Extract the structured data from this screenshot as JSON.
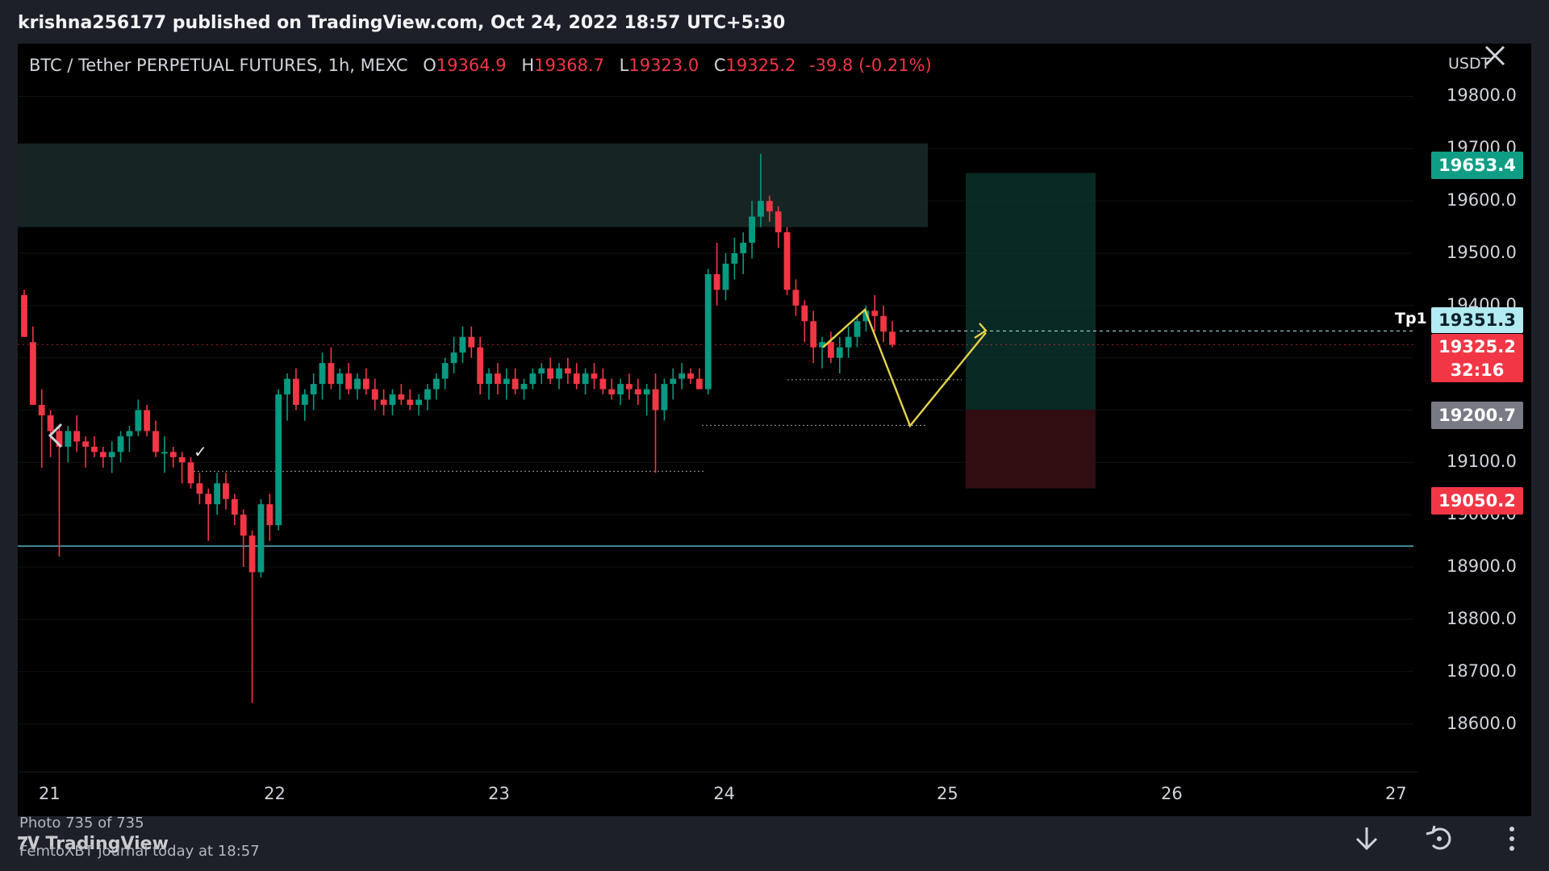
{
  "header": {
    "publish_line": "krishna256177 published on TradingView.com, Oct 24, 2022 18:57 UTC+5:30"
  },
  "chart": {
    "symbol": "BTC / Tether PERPETUAL FUTURES, 1h, MEXC",
    "ohlc": {
      "o_label": "O",
      "o": "19364.9",
      "h_label": "H",
      "h": "19368.7",
      "l_label": "L",
      "l": "19323.0",
      "c_label": "C",
      "c": "19325.2",
      "change": "-39.8 (-0.21%)"
    },
    "currency": "USDT",
    "price_axis": [
      "19800.0",
      "19700.0",
      "19600.0",
      "19500.0",
      "19400.0",
      "19100.0",
      "19000.0",
      "18900.0",
      "18800.0",
      "18700.0",
      "18600.0"
    ],
    "date_axis": [
      "21",
      "22",
      "23",
      "24",
      "25",
      "26",
      "27"
    ],
    "tags": {
      "tp_price": "19653.4",
      "tp1": "19351.3",
      "last": "19325.2",
      "countdown": "32:16",
      "entry": "19200.7",
      "sl": "19050.2"
    },
    "tp1_label": "Tp1",
    "check_mark": "✓",
    "colors": {
      "up": "#089981",
      "down": "#f23645",
      "tp_tag": "#0f9e85",
      "tp1_tag": "#b2ebf2",
      "sl_tag": "#f23645",
      "entry_tag": "#787b86"
    }
  },
  "footer": {
    "photo_counter": "Photo 735 of 735",
    "brand": "TradingView",
    "sender": "FemtoXBT journal  today at 18:57",
    "icons": [
      "download-icon",
      "share-icon",
      "more-icon"
    ]
  },
  "chart_data": {
    "type": "candlestick",
    "title": "BTC / Tether PERPETUAL FUTURES, 1h, MEXC",
    "ylim": [
      18550,
      19830
    ],
    "x": [
      "21",
      "22",
      "23",
      "24",
      "25",
      "26",
      "27"
    ],
    "candles": [
      {
        "o": 19420,
        "h": 19430,
        "l": 19340,
        "c": 19340
      },
      {
        "o": 19330,
        "h": 19360,
        "l": 19210,
        "c": 19210
      },
      {
        "o": 19210,
        "h": 19240,
        "l": 19090,
        "c": 19190
      },
      {
        "o": 19190,
        "h": 19200,
        "l": 19110,
        "c": 19160
      },
      {
        "o": 19160,
        "h": 19170,
        "l": 18920,
        "c": 19130
      },
      {
        "o": 19130,
        "h": 19170,
        "l": 19100,
        "c": 19160
      },
      {
        "o": 19160,
        "h": 19190,
        "l": 19120,
        "c": 19140
      },
      {
        "o": 19140,
        "h": 19150,
        "l": 19090,
        "c": 19130
      },
      {
        "o": 19130,
        "h": 19150,
        "l": 19110,
        "c": 19120
      },
      {
        "o": 19120,
        "h": 19130,
        "l": 19090,
        "c": 19110
      },
      {
        "o": 19110,
        "h": 19140,
        "l": 19080,
        "c": 19120
      },
      {
        "o": 19120,
        "h": 19160,
        "l": 19100,
        "c": 19150
      },
      {
        "o": 19150,
        "h": 19170,
        "l": 19120,
        "c": 19160
      },
      {
        "o": 19160,
        "h": 19220,
        "l": 19150,
        "c": 19200
      },
      {
        "o": 19200,
        "h": 19210,
        "l": 19150,
        "c": 19160
      },
      {
        "o": 19160,
        "h": 19180,
        "l": 19110,
        "c": 19120
      },
      {
        "o": 19120,
        "h": 19150,
        "l": 19080,
        "c": 19120
      },
      {
        "o": 19120,
        "h": 19130,
        "l": 19090,
        "c": 19110
      },
      {
        "o": 19110,
        "h": 19120,
        "l": 19060,
        "c": 19100
      },
      {
        "o": 19100,
        "h": 19110,
        "l": 19050,
        "c": 19060
      },
      {
        "o": 19060,
        "h": 19080,
        "l": 19020,
        "c": 19040
      },
      {
        "o": 19040,
        "h": 19050,
        "l": 18950,
        "c": 19020
      },
      {
        "o": 19020,
        "h": 19080,
        "l": 19000,
        "c": 19060
      },
      {
        "o": 19060,
        "h": 19080,
        "l": 19010,
        "c": 19030
      },
      {
        "o": 19030,
        "h": 19040,
        "l": 18980,
        "c": 19000
      },
      {
        "o": 19000,
        "h": 19010,
        "l": 18900,
        "c": 18960
      },
      {
        "o": 18960,
        "h": 18970,
        "l": 18640,
        "c": 18890
      },
      {
        "o": 18890,
        "h": 19030,
        "l": 18880,
        "c": 19020
      },
      {
        "o": 19020,
        "h": 19040,
        "l": 18950,
        "c": 18980
      },
      {
        "o": 18980,
        "h": 19240,
        "l": 18970,
        "c": 19230
      },
      {
        "o": 19230,
        "h": 19270,
        "l": 19180,
        "c": 19260
      },
      {
        "o": 19260,
        "h": 19280,
        "l": 19200,
        "c": 19210
      },
      {
        "o": 19210,
        "h": 19240,
        "l": 19180,
        "c": 19230
      },
      {
        "o": 19230,
        "h": 19270,
        "l": 19200,
        "c": 19250
      },
      {
        "o": 19250,
        "h": 19310,
        "l": 19220,
        "c": 19290
      },
      {
        "o": 19290,
        "h": 19320,
        "l": 19240,
        "c": 19250
      },
      {
        "o": 19250,
        "h": 19280,
        "l": 19220,
        "c": 19270
      },
      {
        "o": 19270,
        "h": 19290,
        "l": 19230,
        "c": 19240
      },
      {
        "o": 19240,
        "h": 19270,
        "l": 19220,
        "c": 19260
      },
      {
        "o": 19260,
        "h": 19280,
        "l": 19230,
        "c": 19240
      },
      {
        "o": 19240,
        "h": 19260,
        "l": 19200,
        "c": 19220
      },
      {
        "o": 19220,
        "h": 19240,
        "l": 19190,
        "c": 19210
      },
      {
        "o": 19210,
        "h": 19240,
        "l": 19190,
        "c": 19230
      },
      {
        "o": 19230,
        "h": 19250,
        "l": 19210,
        "c": 19220
      },
      {
        "o": 19220,
        "h": 19240,
        "l": 19200,
        "c": 19210
      },
      {
        "o": 19210,
        "h": 19230,
        "l": 19190,
        "c": 19220
      },
      {
        "o": 19220,
        "h": 19250,
        "l": 19200,
        "c": 19240
      },
      {
        "o": 19240,
        "h": 19270,
        "l": 19220,
        "c": 19260
      },
      {
        "o": 19260,
        "h": 19300,
        "l": 19240,
        "c": 19290
      },
      {
        "o": 19290,
        "h": 19340,
        "l": 19270,
        "c": 19310
      },
      {
        "o": 19310,
        "h": 19360,
        "l": 19290,
        "c": 19340
      },
      {
        "o": 19340,
        "h": 19360,
        "l": 19300,
        "c": 19320
      },
      {
        "o": 19320,
        "h": 19340,
        "l": 19230,
        "c": 19250
      },
      {
        "o": 19250,
        "h": 19280,
        "l": 19220,
        "c": 19270
      },
      {
        "o": 19270,
        "h": 19290,
        "l": 19230,
        "c": 19250
      },
      {
        "o": 19250,
        "h": 19280,
        "l": 19220,
        "c": 19260
      },
      {
        "o": 19260,
        "h": 19280,
        "l": 19230,
        "c": 19240
      },
      {
        "o": 19240,
        "h": 19260,
        "l": 19220,
        "c": 19250
      },
      {
        "o": 19250,
        "h": 19280,
        "l": 19240,
        "c": 19270
      },
      {
        "o": 19270,
        "h": 19290,
        "l": 19250,
        "c": 19280
      },
      {
        "o": 19280,
        "h": 19300,
        "l": 19250,
        "c": 19260
      },
      {
        "o": 19260,
        "h": 19290,
        "l": 19240,
        "c": 19280
      },
      {
        "o": 19280,
        "h": 19300,
        "l": 19250,
        "c": 19270
      },
      {
        "o": 19270,
        "h": 19290,
        "l": 19240,
        "c": 19250
      },
      {
        "o": 19250,
        "h": 19280,
        "l": 19230,
        "c": 19270
      },
      {
        "o": 19270,
        "h": 19290,
        "l": 19240,
        "c": 19260
      },
      {
        "o": 19260,
        "h": 19280,
        "l": 19230,
        "c": 19240
      },
      {
        "o": 19240,
        "h": 19260,
        "l": 19220,
        "c": 19230
      },
      {
        "o": 19230,
        "h": 19260,
        "l": 19210,
        "c": 19250
      },
      {
        "o": 19250,
        "h": 19270,
        "l": 19220,
        "c": 19240
      },
      {
        "o": 19240,
        "h": 19260,
        "l": 19210,
        "c": 19230
      },
      {
        "o": 19230,
        "h": 19250,
        "l": 19190,
        "c": 19240
      },
      {
        "o": 19240,
        "h": 19270,
        "l": 19080,
        "c": 19200
      },
      {
        "o": 19200,
        "h": 19260,
        "l": 19180,
        "c": 19250
      },
      {
        "o": 19250,
        "h": 19280,
        "l": 19220,
        "c": 19260
      },
      {
        "o": 19260,
        "h": 19290,
        "l": 19240,
        "c": 19270
      },
      {
        "o": 19270,
        "h": 19280,
        "l": 19250,
        "c": 19260
      },
      {
        "o": 19260,
        "h": 19280,
        "l": 19240,
        "c": 19240
      },
      {
        "o": 19240,
        "h": 19470,
        "l": 19230,
        "c": 19460
      },
      {
        "o": 19460,
        "h": 19520,
        "l": 19400,
        "c": 19430
      },
      {
        "o": 19430,
        "h": 19500,
        "l": 19410,
        "c": 19480
      },
      {
        "o": 19480,
        "h": 19530,
        "l": 19450,
        "c": 19500
      },
      {
        "o": 19500,
        "h": 19540,
        "l": 19460,
        "c": 19520
      },
      {
        "o": 19520,
        "h": 19600,
        "l": 19490,
        "c": 19570
      },
      {
        "o": 19570,
        "h": 19690,
        "l": 19550,
        "c": 19600
      },
      {
        "o": 19600,
        "h": 19610,
        "l": 19560,
        "c": 19580
      },
      {
        "o": 19580,
        "h": 19590,
        "l": 19510,
        "c": 19540
      },
      {
        "o": 19540,
        "h": 19550,
        "l": 19420,
        "c": 19430
      },
      {
        "o": 19430,
        "h": 19450,
        "l": 19380,
        "c": 19400
      },
      {
        "o": 19400,
        "h": 19410,
        "l": 19330,
        "c": 19370
      },
      {
        "o": 19370,
        "h": 19390,
        "l": 19290,
        "c": 19320
      },
      {
        "o": 19320,
        "h": 19340,
        "l": 19280,
        "c": 19330
      },
      {
        "o": 19330,
        "h": 19350,
        "l": 19290,
        "c": 19300
      },
      {
        "o": 19300,
        "h": 19340,
        "l": 19270,
        "c": 19320
      },
      {
        "o": 19320,
        "h": 19360,
        "l": 19300,
        "c": 19340
      },
      {
        "o": 19340,
        "h": 19380,
        "l": 19320,
        "c": 19370
      },
      {
        "o": 19370,
        "h": 19400,
        "l": 19350,
        "c": 19390
      },
      {
        "o": 19390,
        "h": 19420,
        "l": 19350,
        "c": 19380
      },
      {
        "o": 19380,
        "h": 19400,
        "l": 19330,
        "c": 19350
      },
      {
        "o": 19350,
        "h": 19370,
        "l": 19320,
        "c": 19325
      }
    ],
    "zones": [
      {
        "name": "supply",
        "from": 19550,
        "to": 19710
      },
      {
        "name": "target",
        "from": 19200.7,
        "to": 19653.4
      },
      {
        "name": "stop",
        "from": 19050.2,
        "to": 19200.7
      }
    ],
    "hlines": [
      19325.2,
      18940,
      19351.3
    ]
  }
}
